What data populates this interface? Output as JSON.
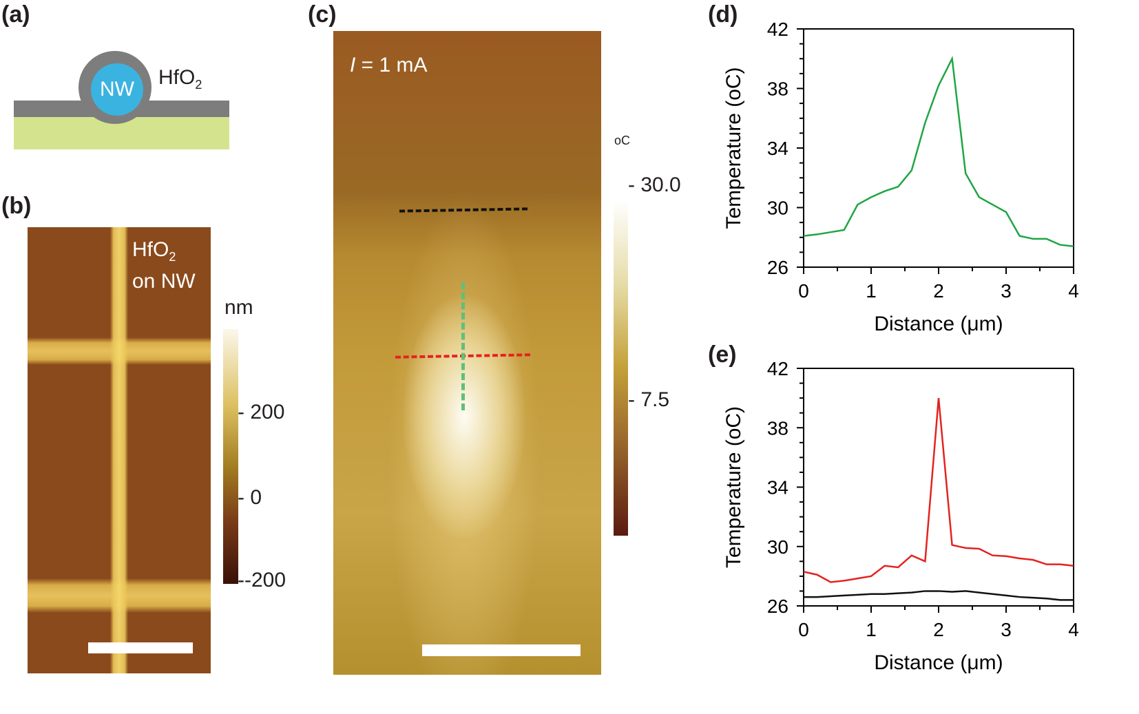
{
  "panels": {
    "a": {
      "label": "(a)",
      "nw": "NW",
      "coating": "HfO",
      "coating_sub": "2"
    },
    "b": {
      "label": "(b)",
      "overlay_line1": "HfO",
      "overlay_sub": "2",
      "overlay_line2": "on NW",
      "colorbar_unit": "nm",
      "colorbar_ticks": [
        "200",
        "0",
        "-200"
      ]
    },
    "c": {
      "label": "(c)",
      "current_italic": "I",
      "current_rest": " = 1 mA",
      "colorbar_unit": "oC",
      "colorbar_ticks": [
        "30.0",
        "7.5"
      ]
    },
    "d": {
      "label": "(d)"
    },
    "e": {
      "label": "(e)"
    }
  },
  "colors": {
    "green": "#1fa544",
    "red": "#e3231f",
    "black": "#111111",
    "substrate": "#d4e38e",
    "oxide": "#7d7d7d",
    "nanowire": "#3bb3e0"
  },
  "chart_data": [
    {
      "type": "line",
      "panel": "(d)",
      "xlabel": "Distance (μm)",
      "ylabel": "Temperature (oC)",
      "xlim": [
        0,
        4
      ],
      "ylim": [
        26,
        42
      ],
      "xticks": [
        "0",
        "1",
        "2",
        "3",
        "4"
      ],
      "yticks": [
        "26",
        "30",
        "34",
        "38",
        "42"
      ],
      "x": [
        0,
        0.2,
        0.4,
        0.6,
        0.8,
        1.0,
        1.2,
        1.4,
        1.6,
        1.8,
        2.0,
        2.2,
        2.4,
        2.6,
        2.8,
        3.0,
        3.2,
        3.4,
        3.6,
        3.8,
        4.0
      ],
      "series": [
        {
          "color": "#1fa544",
          "values": [
            28.1,
            28.2,
            28.35,
            28.5,
            30.2,
            30.7,
            31.1,
            31.4,
            32.5,
            35.7,
            38.2,
            40.0,
            32.3,
            30.7,
            30.2,
            29.7,
            28.1,
            27.9,
            27.9,
            27.5,
            27.4
          ]
        }
      ]
    },
    {
      "type": "line",
      "panel": "(e)",
      "xlabel": "Distance (μm)",
      "ylabel": "Temperature (oC)",
      "xlim": [
        0,
        4
      ],
      "ylim": [
        26,
        42
      ],
      "xticks": [
        "0",
        "1",
        "2",
        "3",
        "4"
      ],
      "yticks": [
        "26",
        "30",
        "34",
        "38",
        "42"
      ],
      "x": [
        0,
        0.2,
        0.4,
        0.6,
        0.8,
        1.0,
        1.2,
        1.4,
        1.6,
        1.8,
        2.0,
        2.2,
        2.4,
        2.6,
        2.8,
        3.0,
        3.2,
        3.4,
        3.6,
        3.8,
        4.0
      ],
      "series": [
        {
          "color": "#e3231f",
          "values": [
            28.3,
            28.1,
            27.6,
            27.7,
            27.85,
            28.0,
            28.7,
            28.6,
            29.4,
            29.0,
            40.0,
            30.1,
            29.9,
            29.85,
            29.4,
            29.35,
            29.2,
            29.1,
            28.8,
            28.8,
            28.7
          ]
        },
        {
          "color": "#111111",
          "values": [
            26.6,
            26.6,
            26.65,
            26.7,
            26.75,
            26.8,
            26.8,
            26.85,
            26.9,
            27.0,
            27.0,
            26.95,
            27.0,
            26.9,
            26.8,
            26.7,
            26.6,
            26.55,
            26.5,
            26.4,
            26.4
          ]
        }
      ]
    }
  ]
}
